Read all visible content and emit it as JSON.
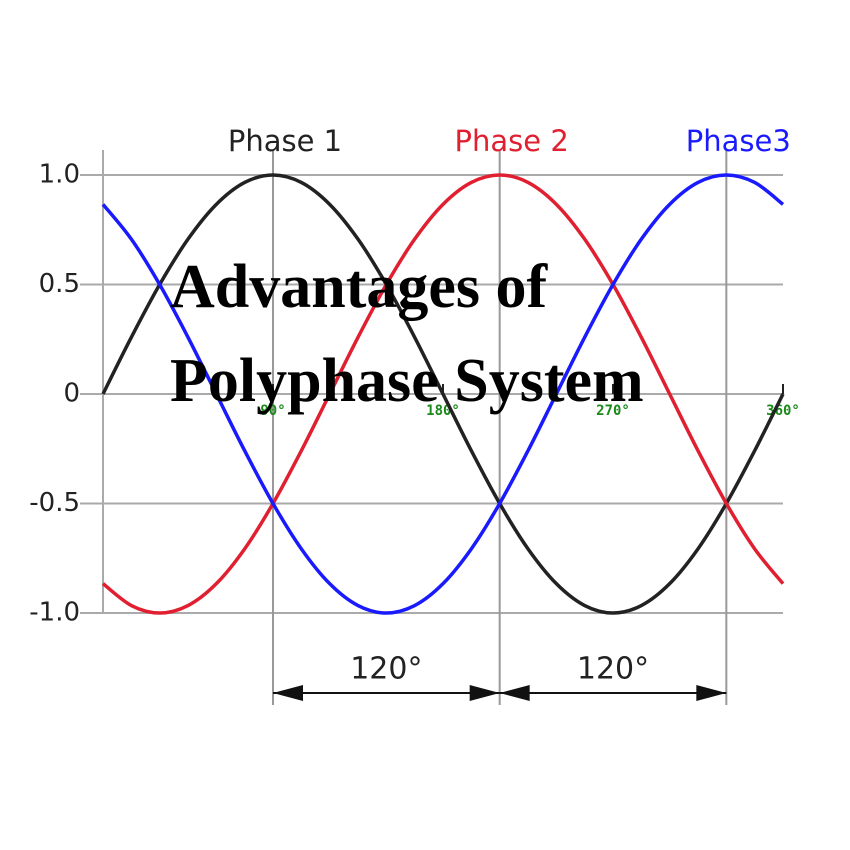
{
  "chart_data": {
    "type": "line",
    "title": "Advantages of Polyphase System",
    "x": [
      0,
      15,
      30,
      45,
      60,
      75,
      90,
      105,
      120,
      135,
      150,
      165,
      180,
      195,
      210,
      225,
      240,
      255,
      270,
      285,
      300,
      315,
      330,
      345,
      360
    ],
    "series": [
      {
        "name": "Phase 1",
        "color": "#222222",
        "values": [
          0,
          0.259,
          0.5,
          0.707,
          0.866,
          0.966,
          1,
          0.966,
          0.866,
          0.707,
          0.5,
          0.259,
          0,
          -0.259,
          -0.5,
          -0.707,
          -0.866,
          -0.966,
          -1,
          -0.966,
          -0.866,
          -0.707,
          -0.5,
          -0.259,
          0
        ]
      },
      {
        "name": "Phase 2",
        "color": "#e02030",
        "values": [
          -0.866,
          -0.966,
          -1,
          -0.966,
          -0.866,
          -0.707,
          -0.5,
          -0.259,
          0,
          0.259,
          0.5,
          0.707,
          0.866,
          0.966,
          1,
          0.966,
          0.866,
          0.707,
          0.5,
          0.259,
          0,
          -0.259,
          -0.5,
          -0.707,
          -0.866
        ]
      },
      {
        "name": "Phase3",
        "color": "#1a1aff",
        "values": [
          0.866,
          0.707,
          0.5,
          0.259,
          0,
          -0.259,
          -0.5,
          -0.707,
          -0.866,
          -0.966,
          -1,
          -0.966,
          -0.866,
          -0.707,
          -0.5,
          -0.259,
          0,
          0.259,
          0.5,
          0.707,
          0.866,
          0.966,
          1,
          0.966,
          0.866
        ]
      }
    ],
    "xlim": [
      0,
      360
    ],
    "xticks": [
      {
        "value": 90,
        "label": "90°"
      },
      {
        "value": 180,
        "label": "180°"
      },
      {
        "value": 270,
        "label": "270°"
      },
      {
        "value": 360,
        "label": "360°"
      }
    ],
    "ylim": [
      -1,
      1
    ],
    "yticks": [
      {
        "value": 1,
        "label": "1.0"
      },
      0.5,
      0,
      -0.5,
      {
        "value": -1,
        "label": "-1.0"
      }
    ],
    "grid": true,
    "vlines": [
      90,
      210,
      330
    ],
    "annotations": [
      "120°",
      "120°"
    ]
  }
}
